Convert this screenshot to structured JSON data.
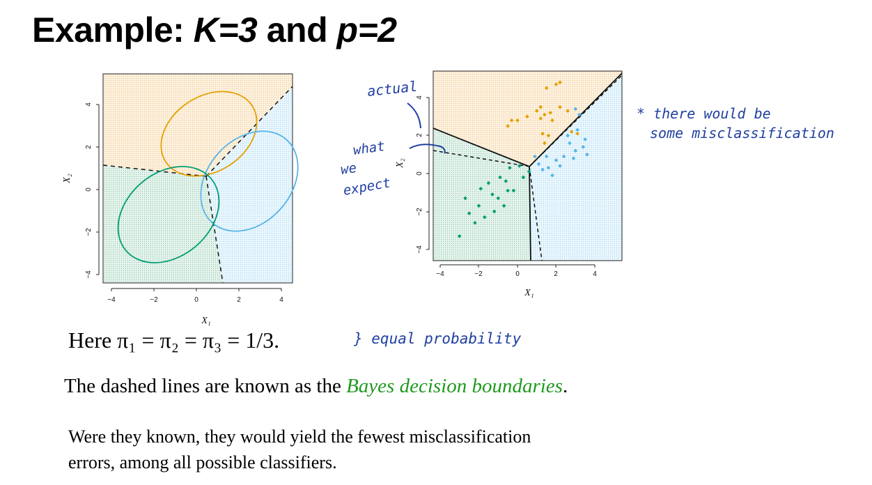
{
  "title": {
    "prefix": "Example: ",
    "k": "K=3",
    "mid": " and ",
    "p": "p=2"
  },
  "plot_left": {
    "x_label": "X₁",
    "y_label": "X₂",
    "x_ticks": [
      "−4",
      "−2",
      "0",
      "2",
      "4"
    ],
    "y_ticks": [
      "−4",
      "−2",
      "0",
      "2",
      "4"
    ]
  },
  "plot_right": {
    "x_label": "X₁",
    "y_label": "X₂",
    "x_ticks": [
      "−4",
      "−2",
      "0",
      "2",
      "4"
    ],
    "y_ticks": [
      "−4",
      "−2",
      "0",
      "2",
      "4"
    ]
  },
  "handwriting": {
    "actual": "actual",
    "what": "what",
    "we": "we",
    "expect": "expect",
    "note_line1": "* there would be",
    "note_line2": "some misclassification",
    "equal": "} equal probability"
  },
  "text": {
    "here": "Here π₁ = π₂ = π₃ = 1/3.",
    "dashed_prefix": "The dashed lines are known as the ",
    "bayes": "Bayes decision boundaries",
    "dashed_suffix": ".",
    "para_line1": "Were they known, they would yield the fewest misclassification",
    "para_line2": "errors, among all possible classifiers."
  },
  "colors": {
    "orange": "#e69f00",
    "blue": "#56b4e9",
    "green": "#009e73",
    "orange_bg": "#fbecd6",
    "blue_bg": "#e3f3fb",
    "green_bg": "#dcefe6",
    "ink": "#1f3fa0",
    "bayes_green": "#1e9a1e"
  },
  "chart_data": [
    {
      "type": "scatter",
      "title": "",
      "xlabel": "X₁",
      "ylabel": "X₂",
      "xlim": [
        -4.5,
        5
      ],
      "ylim": [
        -4.5,
        5
      ],
      "description_elements": "three class ellipses (orange, blue, green) with dashed Bayes decision boundaries",
      "ellipses": [
        {
          "name": "orange",
          "center": [
            1,
            2.5
          ]
        },
        {
          "name": "blue",
          "center": [
            2.5,
            1
          ]
        },
        {
          "name": "green",
          "center": [
            -1.5,
            -1
          ]
        }
      ]
    },
    {
      "type": "scatter",
      "title": "",
      "xlabel": "X₁",
      "ylabel": "X₂",
      "xlim": [
        -4.5,
        5
      ],
      "ylim": [
        -4.5,
        5
      ],
      "series": [
        {
          "name": "orange",
          "points": [
            [
              -0.5,
              2.5
            ],
            [
              0,
              2.8
            ],
            [
              0.5,
              3
            ],
            [
              1,
              3.3
            ],
            [
              1.2,
              3.5
            ],
            [
              1.5,
              4.5
            ],
            [
              2,
              4.7
            ],
            [
              2.2,
              4.8
            ],
            [
              1.2,
              2.9
            ],
            [
              1.4,
              3.1
            ],
            [
              1.7,
              3.2
            ],
            [
              2.2,
              3.5
            ],
            [
              2.6,
              3.3
            ],
            [
              1.8,
              2.8
            ],
            [
              1.3,
              2.1
            ],
            [
              1.6,
              2.0
            ],
            [
              1.4,
              1.6
            ],
            [
              2.8,
              2.2
            ],
            [
              3.1,
              2.1
            ],
            [
              -0.3,
              2.8
            ]
          ]
        },
        {
          "name": "blue",
          "points": [
            [
              3,
              3.4
            ],
            [
              3.2,
              3.1
            ],
            [
              2.6,
              2.0
            ],
            [
              3.1,
              2.3
            ],
            [
              3.5,
              1.8
            ],
            [
              3.4,
              1.4
            ],
            [
              3.0,
              1.2
            ],
            [
              2.7,
              1.6
            ],
            [
              2.4,
              0.9
            ],
            [
              2.0,
              0.7
            ],
            [
              2.2,
              0.4
            ],
            [
              1.6,
              0.3
            ],
            [
              1.8,
              -0.1
            ],
            [
              1.3,
              0.2
            ],
            [
              2.9,
              0.8
            ],
            [
              3.6,
              1.0
            ],
            [
              0.9,
              0.9
            ],
            [
              1.1,
              0.5
            ],
            [
              1.5,
              0.9
            ]
          ]
        },
        {
          "name": "green",
          "points": [
            [
              -3,
              -3.3
            ],
            [
              -2.7,
              -1.3
            ],
            [
              -2.5,
              -2.1
            ],
            [
              -2.2,
              -2.6
            ],
            [
              -1.9,
              -0.8
            ],
            [
              -2.0,
              -1.7
            ],
            [
              -1.7,
              -2.3
            ],
            [
              -1.5,
              -0.5
            ],
            [
              -1.3,
              -1.1
            ],
            [
              -1.2,
              -2.0
            ],
            [
              -1.0,
              -1.3
            ],
            [
              -0.9,
              -0.2
            ],
            [
              -0.7,
              -1.7
            ],
            [
              -0.6,
              -0.4
            ],
            [
              -0.5,
              -0.9
            ],
            [
              -0.4,
              0.3
            ],
            [
              -0.2,
              -0.9
            ],
            [
              0.1,
              0.4
            ],
            [
              0.3,
              -0.2
            ],
            [
              0.6,
              0.1
            ]
          ]
        }
      ]
    }
  ]
}
